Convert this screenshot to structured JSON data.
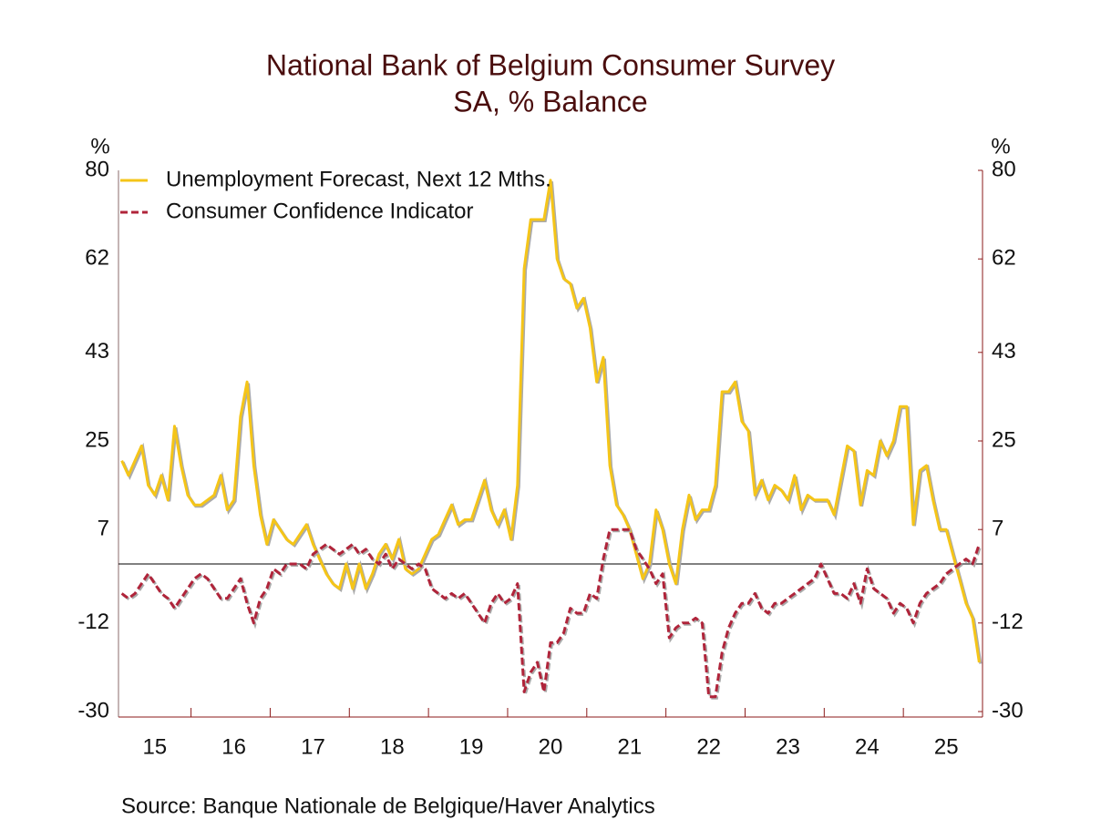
{
  "chart_data": {
    "type": "line",
    "title": "National Bank of Belgium Consumer Survey",
    "subtitle": "SA, % Balance",
    "y_unit": "%",
    "y2_unit": "%",
    "source": "Source:  Banque Nationale de Belgique/Haver Analytics",
    "categories": [
      null,
      null,
      null,
      null,
      null,
      "15",
      null,
      null,
      null,
      null,
      null,
      null,
      null,
      null,
      null,
      null,
      null,
      "16",
      null,
      null,
      null,
      null,
      null,
      null,
      null,
      null,
      null,
      null,
      null,
      "17",
      null,
      null,
      null,
      null,
      null,
      null,
      null,
      null,
      null,
      null,
      null,
      "18",
      null,
      null,
      null,
      null,
      null,
      null,
      null,
      null,
      null,
      null,
      null,
      "19",
      null,
      null,
      null,
      null,
      null,
      null,
      null,
      null,
      null,
      null,
      null,
      "20",
      null,
      null,
      null,
      null,
      null,
      null,
      null,
      null,
      null,
      null,
      null,
      "21",
      null,
      null,
      null,
      null,
      null,
      null,
      null,
      null,
      null,
      null,
      null,
      "22",
      null,
      null,
      null,
      null,
      null,
      null,
      null,
      null,
      null,
      null,
      null,
      "23",
      null,
      null,
      null,
      null,
      null,
      null,
      null,
      null,
      null,
      null,
      null,
      "24",
      null,
      null,
      null,
      null,
      null,
      null,
      null,
      null,
      null,
      null,
      null,
      "25",
      null,
      null,
      null,
      null,
      null
    ],
    "series": [
      {
        "name": "Unemployment Forecast, Next 12 Mths.",
        "color": "#f5c518",
        "dash": false,
        "values": [
          21,
          18,
          21,
          24,
          16,
          14,
          18,
          13,
          28,
          20,
          14,
          12,
          12,
          13,
          14,
          18,
          11,
          13,
          30,
          37,
          20,
          10,
          4,
          9,
          7,
          5,
          4,
          6,
          8,
          4,
          1,
          -2,
          -4,
          -5,
          0,
          -5,
          0,
          -5,
          -2,
          2,
          4,
          1,
          5,
          -1,
          -2,
          -1,
          2,
          5,
          6,
          9,
          12,
          8,
          9,
          9,
          13,
          17,
          11,
          8,
          11,
          5,
          16,
          60,
          70,
          70,
          70,
          78,
          62,
          58,
          57,
          52,
          54,
          48,
          37,
          42,
          20,
          12,
          10,
          7,
          2,
          -3,
          0,
          11,
          7,
          0,
          -4,
          7,
          14,
          9,
          11,
          11,
          16,
          35,
          35,
          37,
          29,
          27,
          14,
          17,
          13,
          16,
          15,
          13,
          18,
          11,
          14,
          13,
          13,
          13,
          10,
          17,
          24,
          23,
          12,
          19,
          18,
          25,
          22,
          25,
          32,
          32,
          8,
          19,
          20,
          13,
          7,
          7,
          2,
          -3,
          -8,
          -11,
          -20
        ]
      },
      {
        "name": "Consumer Confidence Indicator",
        "color": "#b0243a",
        "dash": true,
        "values": [
          -6,
          -7,
          -6,
          -4,
          -2,
          -4,
          -6,
          -7,
          -9,
          -7,
          -5,
          -3,
          -2,
          -3,
          -5,
          -7,
          -7,
          -5,
          -3,
          -8,
          -12,
          -7,
          -5,
          -1,
          -2,
          0,
          0,
          0,
          -1,
          2,
          3,
          4,
          3,
          2,
          3,
          4,
          2,
          3,
          1,
          0,
          2,
          -1,
          1,
          0,
          -1,
          0,
          -1,
          -5,
          -6,
          -7,
          -6,
          -7,
          -6,
          -8,
          -10,
          -12,
          -8,
          -6,
          -8,
          -7,
          -4,
          -26,
          -22,
          -20,
          -26,
          -16,
          -16,
          -14,
          -9,
          -10,
          -10,
          -6,
          -7,
          1,
          7,
          7,
          7,
          7,
          3,
          1,
          -1,
          -4,
          -2,
          -15,
          -13,
          -12,
          -12,
          -11,
          -12,
          -27,
          -27,
          -18,
          -13,
          -10,
          -8,
          -8,
          -6,
          -9,
          -10,
          -8,
          -8,
          -7,
          -6,
          -5,
          -4,
          -3,
          0,
          -3,
          -6,
          -6,
          -7,
          -4,
          -8,
          -1,
          -5,
          -6,
          -7,
          -10,
          -8,
          -9,
          -12,
          -8,
          -6,
          -5,
          -4,
          -2,
          -1,
          0,
          1,
          0,
          4
        ]
      }
    ],
    "ylim": [
      -30,
      80
    ],
    "yticks": [
      -30,
      -12,
      7,
      25,
      43,
      62,
      80
    ],
    "y2lim": [
      -30,
      80
    ],
    "y2ticks": [
      -30,
      -12,
      7,
      25,
      43,
      62,
      80
    ],
    "zero_line": true,
    "legend": "top-left"
  }
}
